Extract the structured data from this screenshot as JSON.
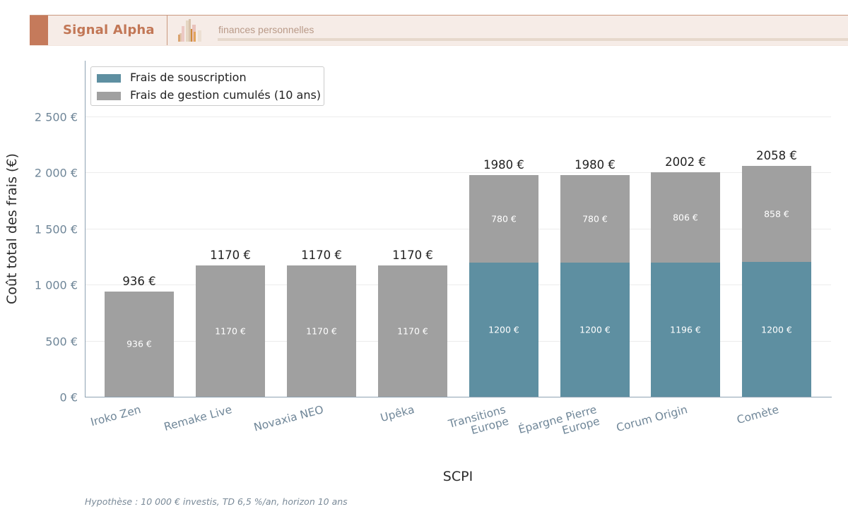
{
  "header": {
    "brand": "Signal Alpha",
    "tagline": "finances personnelles",
    "logo_icon": "bar-chart-logo-icon",
    "colors": {
      "accent": "#c57a5b",
      "background": "#f6ece7",
      "brand_text": "#c27756",
      "tagline_text": "#b99a88"
    }
  },
  "chart": {
    "ylabel": "Coût total des frais (€)",
    "xlabel": "SCPI",
    "yticks": [
      "0 €",
      "500 €",
      "1 000 €",
      "1 500 €",
      "2 000 €",
      "2 500 €"
    ],
    "legend": [
      {
        "label": "Frais de souscription",
        "color": "#5e8fa1"
      },
      {
        "label": "Frais de gestion cumulés (10 ans)",
        "color": "#a0a0a0"
      }
    ],
    "footnote": "Hypothèse : 10 000 € investis, TD 6,5 %/an, horizon 10 ans"
  },
  "chart_data": {
    "type": "bar",
    "stacked": true,
    "title": "",
    "xlabel": "SCPI",
    "ylabel": "Coût total des frais (€)",
    "ylim": [
      0,
      3000
    ],
    "yticks": [
      0,
      500,
      1000,
      1500,
      2000,
      2500
    ],
    "grid": "y",
    "legend_position": "upper left",
    "categories": [
      "Iroko Zen",
      "Remake Live",
      "Novaxia NEO",
      "Upêka",
      "Transitions Europe",
      "Épargne Pierre Europe",
      "Corum Origin",
      "Comète"
    ],
    "category_labels": [
      [
        "Iroko Zen"
      ],
      [
        "Remake Live"
      ],
      [
        "Novaxia NEO"
      ],
      [
        "Upêka"
      ],
      [
        "Transitions",
        "Europe"
      ],
      [
        "Épargne Pierre",
        "Europe"
      ],
      [
        "Corum Origin"
      ],
      [
        "Comète"
      ]
    ],
    "series": [
      {
        "name": "Frais de souscription",
        "color": "#5e8fa1",
        "values": [
          0,
          0,
          0,
          0,
          1200,
          1200,
          1196,
          1200
        ],
        "labels": [
          "",
          "",
          "",
          "",
          "1200 €",
          "1200 €",
          "1196 €",
          "1200 €"
        ]
      },
      {
        "name": "Frais de gestion cumulés (10 ans)",
        "color": "#a0a0a0",
        "values": [
          936,
          1170,
          1170,
          1170,
          780,
          780,
          806,
          858
        ],
        "labels": [
          "936 €",
          "1170 €",
          "1170 €",
          "1170 €",
          "780 €",
          "780 €",
          "806 €",
          "858 €"
        ]
      }
    ],
    "totals": [
      936,
      1170,
      1170,
      1170,
      1980,
      1980,
      2002,
      2058
    ],
    "total_labels": [
      "936 €",
      "1170 €",
      "1170 €",
      "1170 €",
      "1980 €",
      "1980 €",
      "2002 €",
      "2058 €"
    ],
    "footnote": "Hypothèse : 10 000 € investis, TD 6,5 %/an, horizon 10 ans"
  }
}
